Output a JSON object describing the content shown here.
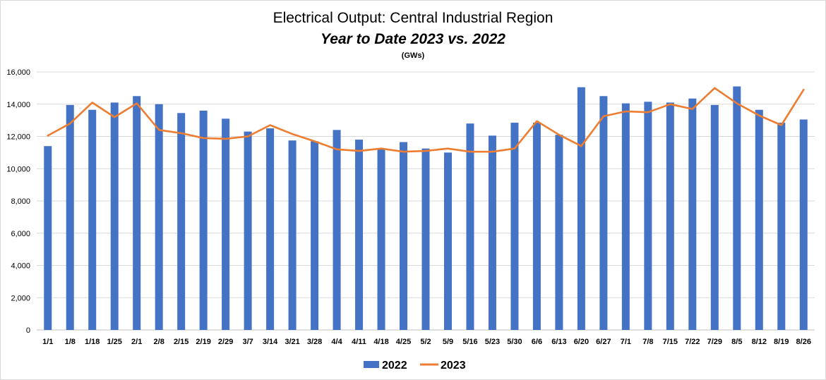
{
  "chart_data": {
    "type": "bar",
    "title": "Electrical Output:  Central Industrial Region",
    "subtitle": "Year to Date 2023 vs. 2022",
    "units": "(GWs)",
    "categories": [
      "1/1",
      "1/8",
      "1/18",
      "1/25",
      "2/1",
      "2/8",
      "2/15",
      "2/19",
      "2/29",
      "3/7",
      "3/14",
      "3/21",
      "3/28",
      "4/4",
      "4/11",
      "4/18",
      "4/25",
      "5/2",
      "5/9",
      "5/16",
      "5/23",
      "5/30",
      "6/6",
      "6/13",
      "6/20",
      "6/27",
      "7/1",
      "7/8",
      "7/15",
      "7/22",
      "7/29",
      "8/5",
      "8/12",
      "8/19",
      "8/26"
    ],
    "series": [
      {
        "name": "2022",
        "type": "bar",
        "color": "#4472C4",
        "values": [
          11400,
          13950,
          13650,
          14100,
          14500,
          14000,
          13450,
          13600,
          13100,
          12300,
          12500,
          11750,
          11700,
          12400,
          11800,
          11200,
          11650,
          11250,
          11000,
          12800,
          12050,
          12850,
          12850,
          12100,
          15050,
          14500,
          14050,
          14150,
          14100,
          14350,
          13950,
          15100,
          13650,
          12850,
          13050
        ]
      },
      {
        "name": "2023",
        "type": "line",
        "color": "#ED7D31",
        "values": [
          12050,
          12800,
          14100,
          13200,
          14050,
          12400,
          12200,
          11900,
          11850,
          12000,
          12700,
          12150,
          11700,
          11200,
          11100,
          11250,
          11050,
          11100,
          11250,
          11050,
          11050,
          11250,
          12950,
          12100,
          11400,
          13250,
          13550,
          13500,
          14000,
          13700,
          15000,
          14050,
          13300,
          12700,
          14900
        ]
      }
    ],
    "ylim": [
      0,
      16000
    ],
    "yticks": [
      0,
      2000,
      4000,
      6000,
      8000,
      10000,
      12000,
      14000,
      16000
    ],
    "ytick_labels": [
      "0",
      "2,000",
      "4,000",
      "6,000",
      "8,000",
      "10,000",
      "12,000",
      "14,000",
      "16,000"
    ],
    "grid": true,
    "legend": "bottom-center"
  }
}
